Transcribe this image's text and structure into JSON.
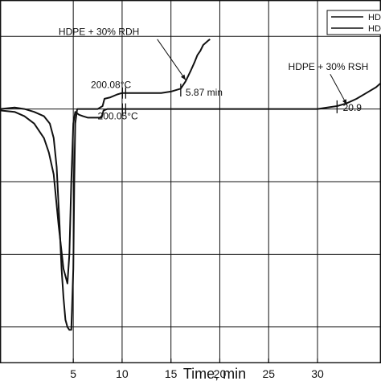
{
  "chart_data": {
    "type": "line",
    "xlabel": "Time, min",
    "xlim": [
      -2.5,
      36.5
    ],
    "ylim": [
      -1.75,
      0.75
    ],
    "x_ticks": [
      5,
      10,
      15,
      20,
      25,
      30
    ],
    "y_grid": [
      -1.5,
      -1.0,
      -0.5,
      0.0,
      0.5
    ],
    "grid": true,
    "legend": {
      "position": "top-right",
      "entries": [
        "HD",
        "HD"
      ]
    },
    "colors": {
      "line": "#111111",
      "grid": "#111111",
      "background": "#ffffff"
    },
    "series": [
      {
        "points": [
          [
            -2.5,
            0.0
          ],
          [
            -1,
            0.01
          ],
          [
            0,
            0.0
          ],
          [
            1,
            -0.02
          ],
          [
            2,
            -0.05
          ],
          [
            2.6,
            -0.1
          ],
          [
            3.0,
            -0.2
          ],
          [
            3.3,
            -0.4
          ],
          [
            3.6,
            -0.8
          ],
          [
            3.8,
            -1.1
          ],
          [
            4.0,
            -1.3
          ],
          [
            4.2,
            -1.45
          ],
          [
            4.4,
            -1.5
          ],
          [
            4.6,
            -1.52
          ],
          [
            4.8,
            -1.52
          ],
          [
            5.0,
            -1.1
          ],
          [
            5.1,
            -0.5
          ],
          [
            5.2,
            -0.1
          ],
          [
            5.4,
            0.0
          ],
          [
            5.8,
            0.0
          ],
          [
            6.2,
            0.0
          ],
          [
            7.5,
            0.0
          ],
          [
            8.0,
            0.02
          ],
          [
            8.2,
            0.07
          ],
          [
            8.8,
            0.08
          ],
          [
            9.5,
            0.1
          ],
          [
            10.0,
            0.11
          ],
          [
            11,
            0.11
          ],
          [
            12,
            0.11
          ],
          [
            13,
            0.11
          ],
          [
            14,
            0.11
          ],
          [
            15,
            0.12
          ],
          [
            16,
            0.14
          ],
          [
            16.5,
            0.19
          ],
          [
            17.0,
            0.26
          ],
          [
            17.4,
            0.32
          ],
          [
            17.7,
            0.37
          ],
          [
            18.0,
            0.4
          ],
          [
            18.3,
            0.44
          ],
          [
            18.8,
            0.47
          ],
          [
            19,
            0.48
          ]
        ]
      },
      {
        "points": [
          [
            -2.5,
            -0.01
          ],
          [
            -1,
            -0.02
          ],
          [
            0,
            -0.05
          ],
          [
            1,
            -0.1
          ],
          [
            2,
            -0.2
          ],
          [
            2.5,
            -0.3
          ],
          [
            3.0,
            -0.45
          ],
          [
            3.5,
            -0.8
          ],
          [
            4.0,
            -1.1
          ],
          [
            4.4,
            -1.2
          ],
          [
            4.6,
            -1.0
          ],
          [
            4.8,
            -0.5
          ],
          [
            5.0,
            -0.1
          ],
          [
            5.2,
            -0.02
          ],
          [
            5.6,
            -0.04
          ],
          [
            6.0,
            -0.05
          ],
          [
            6.5,
            -0.06
          ],
          [
            7.5,
            -0.06
          ],
          [
            7.9,
            -0.06
          ],
          [
            8.1,
            -0.01
          ],
          [
            8.5,
            0.0
          ],
          [
            9,
            0.0
          ],
          [
            10,
            0.0
          ],
          [
            15,
            0.0
          ],
          [
            20,
            0.0
          ],
          [
            25,
            0.0
          ],
          [
            28,
            0.0
          ],
          [
            30,
            0.0
          ],
          [
            31,
            0.01
          ],
          [
            32,
            0.02
          ],
          [
            33,
            0.04
          ],
          [
            34,
            0.07
          ],
          [
            35,
            0.11
          ],
          [
            36,
            0.15
          ],
          [
            36.5,
            0.18
          ]
        ]
      }
    ],
    "annotations": [
      {
        "text": "HDPE + 30% RDH",
        "arrow_to": [
          16.5,
          0.2
        ]
      },
      {
        "text": "200.08°C",
        "marker": [
          10.2,
          0.11
        ]
      },
      {
        "text": "200.05°C",
        "marker": [
          10.2,
          0.0
        ]
      },
      {
        "text": "5.87 min",
        "marker": [
          16.0,
          0.13
        ]
      },
      {
        "text": "HDPE + 30% RSH",
        "arrow_to": [
          33.0,
          0.03
        ]
      },
      {
        "text": "20.9",
        "marker": [
          32.0,
          0.015
        ]
      }
    ]
  }
}
